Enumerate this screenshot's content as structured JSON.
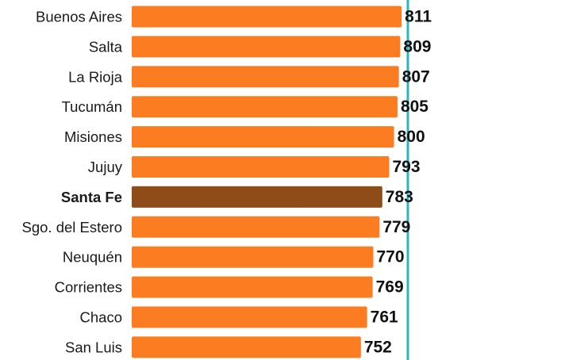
{
  "chart_data": {
    "type": "bar",
    "orientation": "horizontal",
    "categories": [
      "Buenos Aires",
      "Salta",
      "La Rioja",
      "Tucumán",
      "Misiones",
      "Jujuy",
      "Santa Fe",
      "Sgo. del Estero",
      "Neuquén",
      "Corrientes",
      "Chaco",
      "San Luis"
    ],
    "values": [
      811,
      809,
      807,
      805,
      800,
      793,
      783,
      779,
      770,
      769,
      761,
      752
    ],
    "highlight": "Santa Fe",
    "reference_line": "present",
    "colors": {
      "bar": "#fc7c22",
      "highlight_bar": "#8f4c19",
      "highlight_text": "#8f5a2e",
      "reference_line": "#2cb5c0",
      "text": "#1a1a1a"
    },
    "title": "",
    "xlabel": "",
    "ylabel": "",
    "legend": "none",
    "grid": false
  }
}
